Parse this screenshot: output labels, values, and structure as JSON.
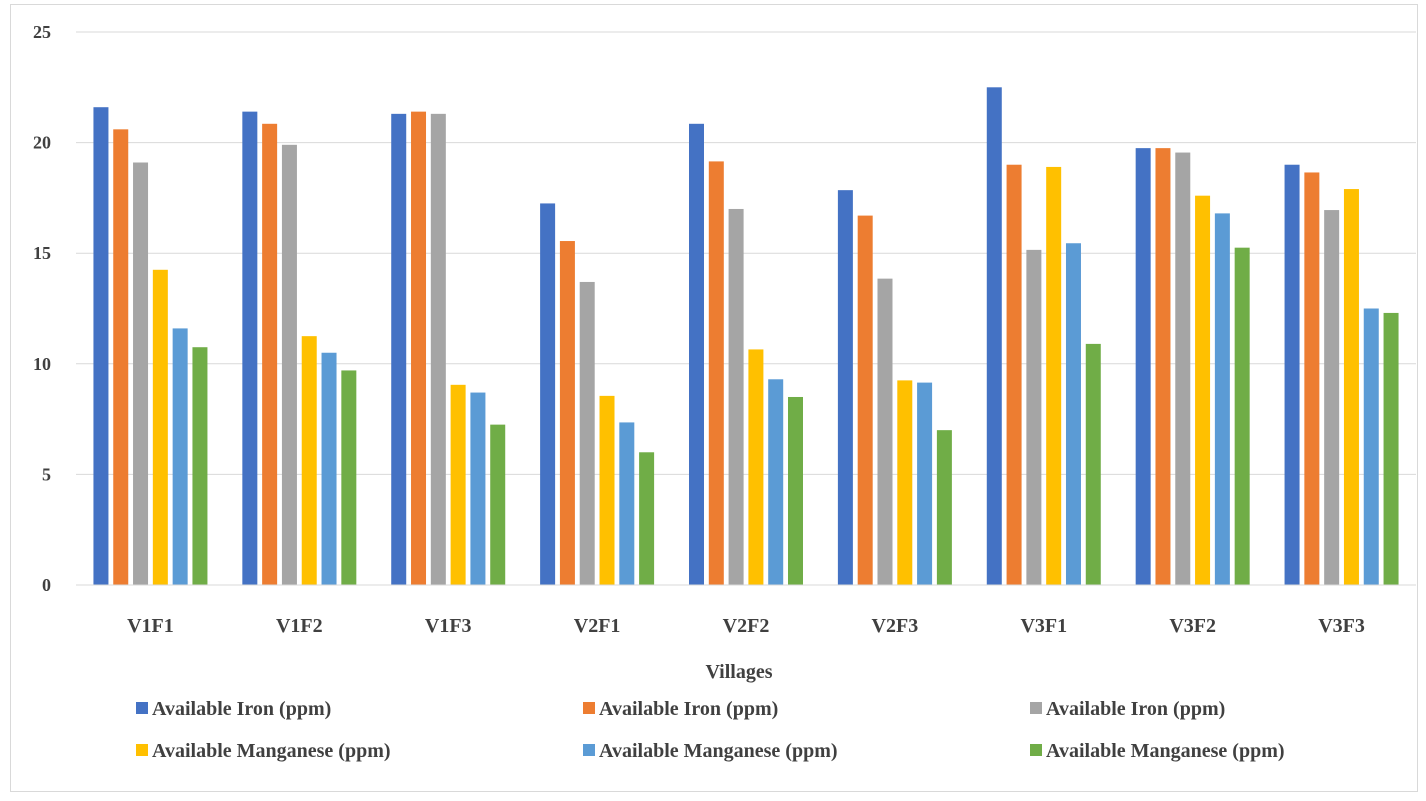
{
  "chart_data": {
    "type": "bar",
    "title": "",
    "xlabel": "Villages",
    "ylabel": "",
    "ylim": [
      0,
      25
    ],
    "yticks": [
      0,
      5,
      10,
      15,
      20,
      25
    ],
    "grid": true,
    "legend_position": "bottom",
    "categories": [
      "V1F1",
      "V1F2",
      "V1F3",
      "V2F1",
      "V2F2",
      "V2F3",
      "V3F1",
      "V3F2",
      "V3F3"
    ],
    "series": [
      {
        "name": "Available Iron (ppm)",
        "color": "#4472c4",
        "values": [
          21.6,
          21.4,
          21.3,
          17.25,
          20.85,
          17.85,
          22.5,
          19.75,
          19.0
        ]
      },
      {
        "name": "Available Iron (ppm)",
        "color": "#ed7d31",
        "values": [
          20.6,
          20.85,
          21.4,
          15.55,
          19.15,
          16.7,
          19.0,
          19.75,
          18.65
        ]
      },
      {
        "name": "Available Iron (ppm)",
        "color": "#a5a5a5",
        "values": [
          19.1,
          19.9,
          21.3,
          13.7,
          17.0,
          13.85,
          15.15,
          19.55,
          16.95
        ]
      },
      {
        "name": "Available Manganese (ppm)",
        "color": "#ffc000",
        "values": [
          14.25,
          11.25,
          9.05,
          8.55,
          10.65,
          9.25,
          18.9,
          17.6,
          17.9
        ]
      },
      {
        "name": "Available Manganese (ppm)",
        "color": "#5b9bd5",
        "values": [
          11.6,
          10.5,
          8.7,
          7.35,
          9.3,
          9.15,
          15.45,
          16.8,
          12.5
        ]
      },
      {
        "name": "Available Manganese (ppm)",
        "color": "#70ad47",
        "values": [
          10.75,
          9.7,
          7.25,
          6.0,
          8.5,
          7.0,
          10.9,
          15.25,
          12.3
        ]
      }
    ]
  }
}
